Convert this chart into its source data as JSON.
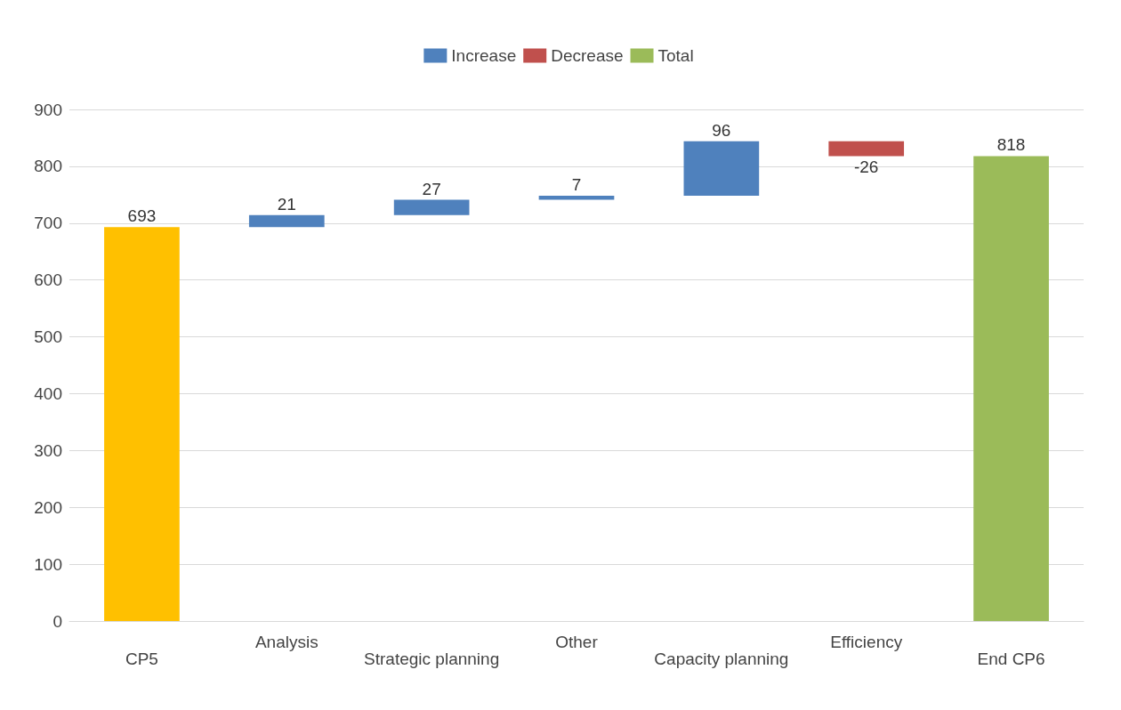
{
  "chart_data": {
    "type": "bar",
    "categories": [
      "CP5",
      "Analysis",
      "Strategic planning",
      "Other",
      "Capacity planning",
      "Efficiency",
      "End CP6"
    ],
    "series": [
      {
        "color": "#ffc000",
        "values": [
          693,
          null,
          null,
          null,
          null,
          null,
          null
        ],
        "base": [
          0,
          null,
          null,
          null,
          null,
          null,
          null
        ]
      },
      {
        "name": "Increase",
        "color": "#4f81bd",
        "values": [
          null,
          21,
          27,
          7,
          96,
          null,
          null
        ],
        "base": [
          null,
          693,
          714,
          741,
          748,
          null,
          null
        ]
      },
      {
        "name": "Decrease",
        "color": "#c0504d",
        "values": [
          null,
          null,
          null,
          null,
          null,
          -26,
          null
        ],
        "base": [
          null,
          null,
          null,
          null,
          null,
          844,
          null
        ]
      },
      {
        "name": "Total",
        "color": "#9bbb59",
        "values": [
          null,
          null,
          null,
          null,
          null,
          null,
          818
        ],
        "base": [
          null,
          null,
          null,
          null,
          null,
          null,
          0
        ]
      }
    ],
    "ylim": [
      0,
      900
    ],
    "yticks": [
      0,
      100,
      200,
      300,
      400,
      500,
      600,
      700,
      800,
      900
    ],
    "grid": "y",
    "legend": "top",
    "data_labels": true
  }
}
